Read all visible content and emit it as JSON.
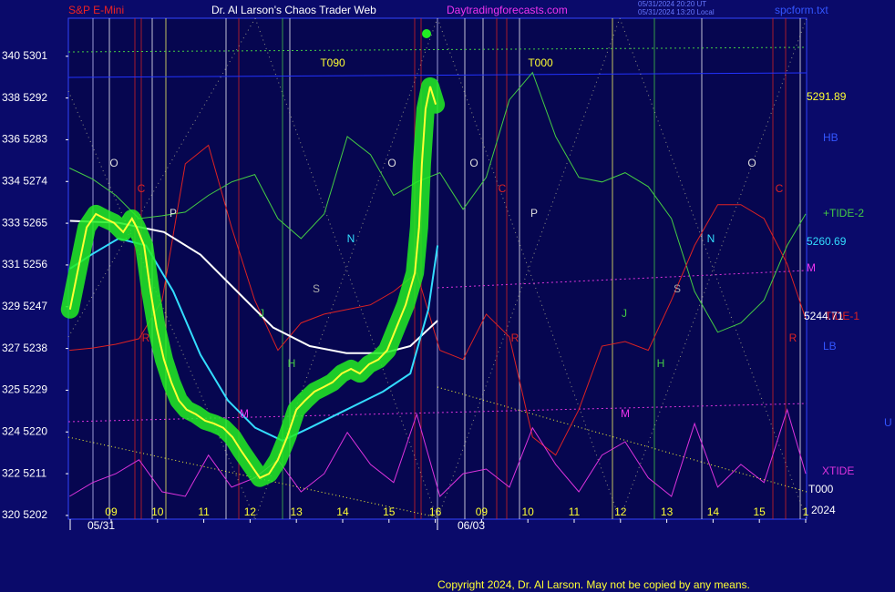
{
  "chart_data": {
    "type": "line",
    "header_left": "S&P E-Mini",
    "title": "Dr. Al Larson's Chaos Trader Web",
    "header_site": "Daytradingforecasts.com",
    "timestamps": [
      "05/31/2024 20:20 UT",
      "05/31/2024 13:20 Local"
    ],
    "file": "spcform.txt",
    "xlim": [
      0.075,
      16.02
    ],
    "ylim": [
      5201.2,
      5309.2
    ],
    "yticks": [
      {
        "value": 5301,
        "label": "340 5301"
      },
      {
        "value": 5292,
        "label": "338 5292"
      },
      {
        "value": 5283,
        "label": "336 5283"
      },
      {
        "value": 5274,
        "label": "334 5274"
      },
      {
        "value": 5265,
        "label": "333 5265"
      },
      {
        "value": 5256,
        "label": "331 5256"
      },
      {
        "value": 5247,
        "label": "329 5247"
      },
      {
        "value": 5238,
        "label": "327 5238"
      },
      {
        "value": 5229,
        "label": "325 5229"
      },
      {
        "value": 5220,
        "label": "324 5220"
      },
      {
        "value": 5211,
        "label": "322 5211"
      },
      {
        "value": 5202,
        "label": "320 5202"
      }
    ],
    "xticks": [
      {
        "value": 1,
        "label": "09"
      },
      {
        "value": 2,
        "label": "10"
      },
      {
        "value": 3,
        "label": "11"
      },
      {
        "value": 4,
        "label": "12"
      },
      {
        "value": 5,
        "label": "13"
      },
      {
        "value": 6,
        "label": "14"
      },
      {
        "value": 7,
        "label": "15"
      },
      {
        "value": 8,
        "label": "16"
      },
      {
        "value": 9,
        "label": "09"
      },
      {
        "value": 10,
        "label": "10"
      },
      {
        "value": 11,
        "label": "11"
      },
      {
        "value": 12,
        "label": "12"
      },
      {
        "value": 13,
        "label": "13"
      },
      {
        "value": 14,
        "label": "14"
      },
      {
        "value": 15,
        "label": "15"
      },
      {
        "value": 16,
        "label": "1"
      }
    ],
    "dates": [
      "05/31",
      "06/03"
    ],
    "year": "2024",
    "series": [
      {
        "color": "#ffff33",
        "x": [
          0.11,
          0.27,
          0.47,
          0.67,
          0.86,
          1.06,
          1.26,
          1.45,
          1.55,
          1.71,
          1.85,
          1.98,
          2.14,
          2.3,
          2.46,
          2.63,
          2.83,
          3.03,
          3.22,
          3.42,
          3.62,
          3.81,
          4.01,
          4.21,
          4.41,
          4.6,
          4.8,
          5.0,
          5.19,
          5.39,
          5.59,
          5.78,
          5.98,
          6.18,
          6.37,
          6.57,
          6.77,
          6.96,
          7.16,
          7.36,
          7.56,
          7.65,
          7.71,
          7.79,
          7.89,
          8.01
        ],
        "values": [
          5246.4,
          5254.3,
          5264.1,
          5267.0,
          5266.0,
          5265.1,
          5263.1,
          5266.0,
          5264.1,
          5260.2,
          5250.3,
          5242.5,
          5235.6,
          5230.7,
          5226.8,
          5224.8,
          5223.8,
          5222.4,
          5221.8,
          5220.9,
          5218.9,
          5215.9,
          5213.0,
          5210.1,
          5211.0,
          5214.0,
          5218.9,
          5224.8,
          5226.8,
          5228.7,
          5229.7,
          5230.7,
          5232.6,
          5233.6,
          5232.6,
          5234.6,
          5235.6,
          5237.6,
          5242.5,
          5247.4,
          5254.3,
          5264.1,
          5277.8,
          5289.6,
          5294.5,
          5290.6
        ]
      },
      {
        "color": "#ffffff",
        "x": [
          0.11,
          1.16,
          2.14,
          2.93,
          3.72,
          4.5,
          5.29,
          6.08,
          6.87,
          7.46,
          8.05
        ],
        "values": [
          5265.5,
          5265.1,
          5263.1,
          5258.2,
          5250.3,
          5242.5,
          5238.5,
          5237.0,
          5237.0,
          5238.5,
          5244.0
        ]
      },
      {
        "color": "#33ddff",
        "x": [
          0.11,
          0.57,
          1.16,
          1.75,
          2.34,
          2.93,
          3.52,
          4.11,
          4.7,
          5.29,
          6.08,
          6.87,
          7.46,
          7.85,
          8.05
        ],
        "values": [
          5255.2,
          5258.2,
          5261.7,
          5260.2,
          5250.3,
          5236.6,
          5226.8,
          5220.9,
          5218.1,
          5220.9,
          5224.8,
          5228.7,
          5232.6,
          5246.4,
          5260.2
        ]
      },
      {
        "name": "+TIDE-2",
        "color": "#44cc44",
        "x": [
          0.1,
          0.6,
          1.1,
          1.6,
          2.1,
          2.6,
          3.1,
          3.6,
          4.1,
          4.6,
          5.1,
          5.6,
          6.1,
          6.6,
          7.1,
          7.6,
          8.1,
          8.6,
          9.1,
          9.6,
          10.1,
          10.6,
          11.1,
          11.6,
          12.1,
          12.6,
          13.1,
          13.6,
          14.1,
          14.6,
          15.1,
          15.6,
          16.0
        ],
        "values": [
          5276.9,
          5274.5,
          5271.0,
          5266.0,
          5266.6,
          5267.4,
          5271.0,
          5273.9,
          5275.5,
          5266.0,
          5261.7,
          5267.0,
          5283.7,
          5279.8,
          5271.0,
          5273.9,
          5275.9,
          5268.0,
          5274.9,
          5291.6,
          5297.5,
          5283.7,
          5274.9,
          5273.9,
          5275.9,
          5272.9,
          5266.0,
          5250.3,
          5241.5,
          5243.5,
          5248.4,
          5260.2,
          5267.0
        ]
      },
      {
        "name": "TIDE-1",
        "color": "#dd2222",
        "x": [
          0.1,
          0.6,
          1.1,
          1.6,
          2.1,
          2.6,
          3.1,
          3.6,
          4.1,
          4.6,
          5.1,
          5.6,
          6.1,
          6.6,
          7.1,
          7.6,
          8.1,
          8.6,
          9.1,
          9.6,
          10.1,
          10.6,
          11.1,
          11.6,
          12.1,
          12.6,
          13.1,
          13.6,
          14.1,
          14.6,
          15.1,
          15.6,
          16.0
        ],
        "values": [
          5237.6,
          5238.1,
          5238.9,
          5240.1,
          5248.4,
          5277.8,
          5281.8,
          5264.1,
          5248.4,
          5237.6,
          5243.5,
          5245.4,
          5246.4,
          5247.4,
          5250.3,
          5254.3,
          5237.6,
          5235.6,
          5245.4,
          5240.5,
          5218.9,
          5215.0,
          5224.8,
          5238.5,
          5239.5,
          5237.6,
          5248.4,
          5260.2,
          5269.0,
          5269.0,
          5266.0,
          5256.2,
          5244.4
        ]
      },
      {
        "name": "XTIDE",
        "color": "#dd33dd",
        "x": [
          0.1,
          0.6,
          1.1,
          1.6,
          2.1,
          2.6,
          3.1,
          3.6,
          4.1,
          4.6,
          5.1,
          5.6,
          6.1,
          6.6,
          7.1,
          7.6,
          8.1,
          8.6,
          9.1,
          9.6,
          10.1,
          10.6,
          11.1,
          11.6,
          12.1,
          12.6,
          13.1,
          13.6,
          14.1,
          14.6,
          15.1,
          15.6,
          16.0
        ],
        "values": [
          5206.1,
          5209.1,
          5211.0,
          5214.0,
          5207.1,
          5206.1,
          5215.0,
          5208.1,
          5210.1,
          5214.0,
          5207.1,
          5211.0,
          5219.9,
          5213.0,
          5209.1,
          5223.8,
          5206.1,
          5211.0,
          5212.0,
          5208.1,
          5220.9,
          5213.0,
          5207.1,
          5215.0,
          5217.9,
          5210.1,
          5206.1,
          5221.8,
          5208.1,
          5213.0,
          5209.1,
          5224.8,
          5211.0
        ]
      }
    ],
    "right_labels": [
      "5291.89",
      "HB",
      "5260.69",
      "M",
      "5244.71",
      "LB",
      "U",
      "T000"
    ],
    "annotations": [
      "T090",
      "T000",
      "O",
      "O",
      "O",
      "O",
      "P",
      "P",
      "C",
      "C",
      "C",
      "N",
      "N",
      "S",
      "S",
      "J",
      "J",
      "H",
      "H",
      "M",
      "M",
      "R",
      "R",
      "R"
    ],
    "copyright": "Copyright 2024, Dr. Al Larson. May not be copied by any means."
  }
}
